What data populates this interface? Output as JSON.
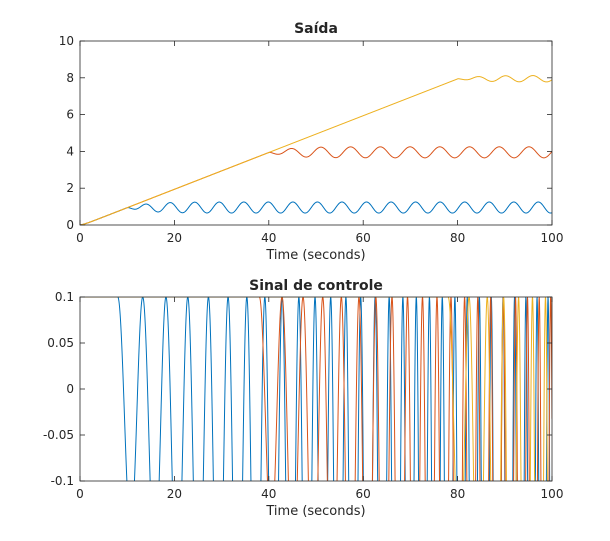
{
  "chart_data": [
    {
      "type": "line",
      "title": "Saída",
      "xlabel": "Time (seconds)",
      "ylabel": "",
      "xlim": [
        0,
        100
      ],
      "ylim": [
        0,
        10
      ],
      "xticks": [
        "0",
        "20",
        "40",
        "60",
        "80",
        "100"
      ],
      "yticks": [
        "0",
        "2",
        "4",
        "6",
        "8",
        "10"
      ],
      "grid": false,
      "series": [
        {
          "color": "#0072bd",
          "model": "ramp-hold-oscillate",
          "ramp_end": 10,
          "level": 1.0,
          "osc_amp": 0.6,
          "osc_period": 5.2
        },
        {
          "color": "#d95319",
          "model": "ramp-hold-oscillate",
          "ramp_end": 40,
          "level": 4.0,
          "osc_amp": 0.6,
          "osc_period": 6.3
        },
        {
          "color": "#edb120",
          "model": "ramp-hold-oscillate",
          "ramp_end": 80,
          "level": 8.0,
          "osc_amp": 0.35,
          "osc_period": 5.8
        }
      ]
    },
    {
      "type": "line",
      "title": "Sinal de controle",
      "xlabel": "Time (seconds)",
      "ylabel": "",
      "xlim": [
        0,
        100
      ],
      "ylim": [
        -0.1,
        0.1
      ],
      "xticks": [
        "0",
        "20",
        "40",
        "60",
        "80",
        "100"
      ],
      "yticks": [
        "-0.1",
        "-0.05",
        "0",
        "0.05",
        "0.1"
      ],
      "grid": false,
      "clipped": true,
      "series": [
        {
          "color": "#0072bd",
          "model": "saturated-oscillation",
          "start": 8,
          "amp": 0.5,
          "period_start": 5.5,
          "period_end": 2.3
        },
        {
          "color": "#d95319",
          "model": "saturated-oscillation",
          "start": 38,
          "amp": 0.5,
          "period_start": 5.0,
          "period_end": 2.4
        },
        {
          "color": "#edb120",
          "model": "saturated-oscillation",
          "start": 78,
          "amp": 0.5,
          "period_start": 4.8,
          "period_end": 2.6
        }
      ]
    }
  ]
}
